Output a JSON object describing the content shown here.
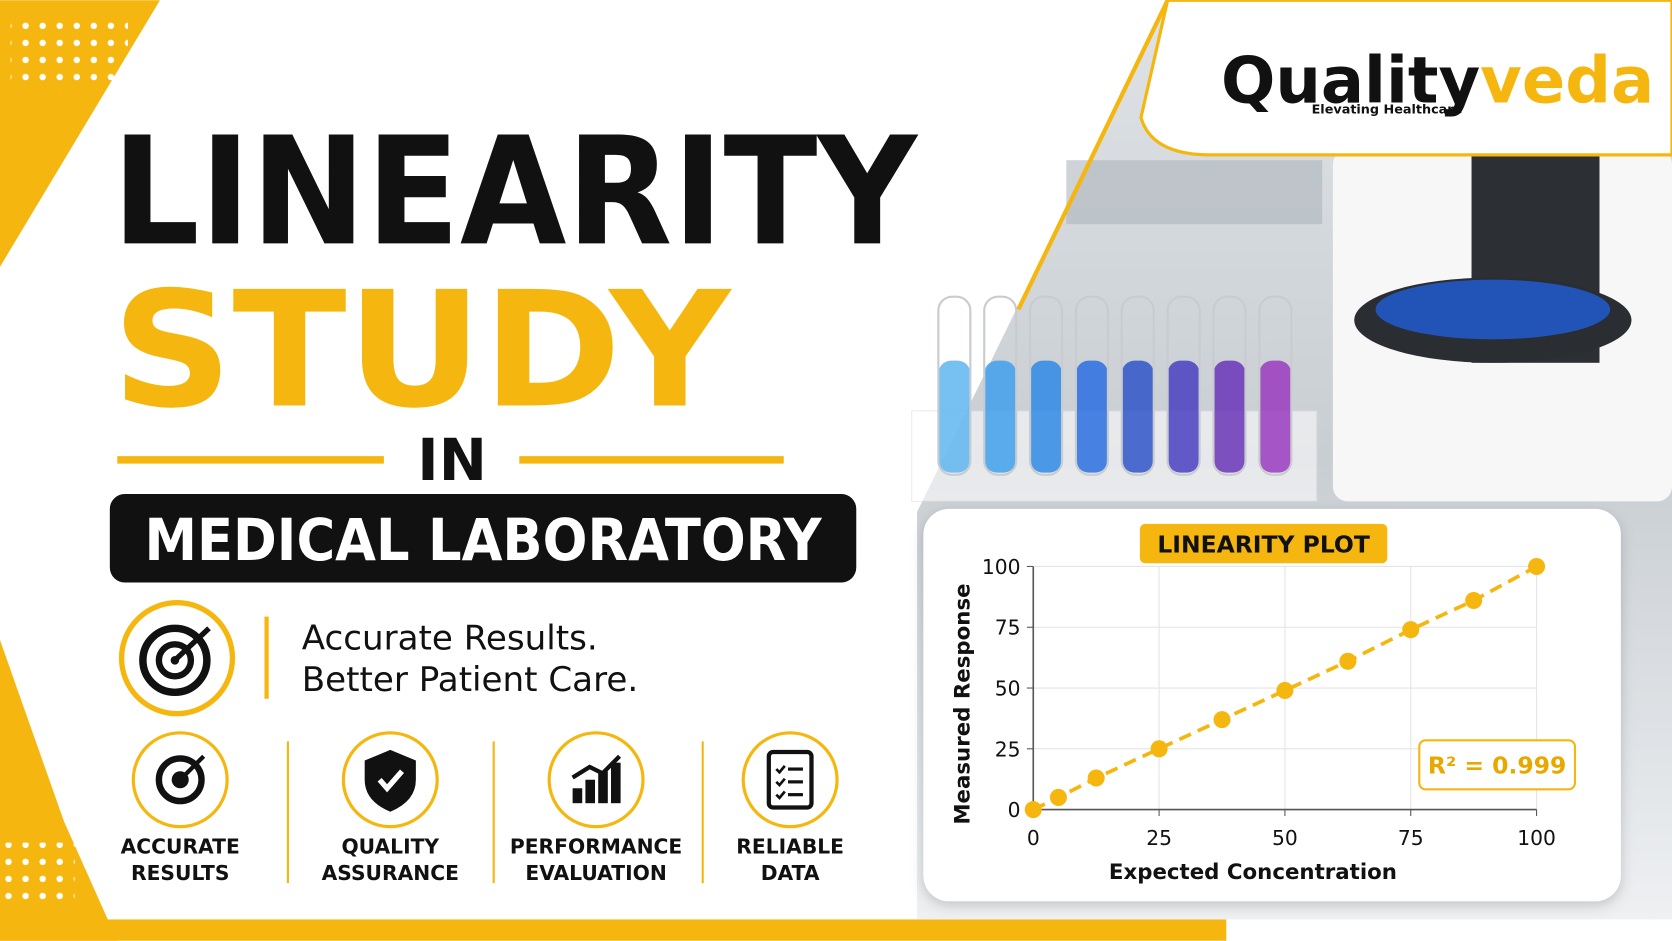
{
  "logo": {
    "brand_dark": "Quality",
    "brand_accent": "veda",
    "tagline": "Elevating Healthcare"
  },
  "headline": {
    "line1": "LINEARITY",
    "line2": "STUDY",
    "line3": "IN",
    "line4": "MEDICAL LABORATORY"
  },
  "tagline": [
    "Accurate Results.",
    "Better Patient Care."
  ],
  "features": [
    {
      "lines": [
        "ACCURATE",
        "RESULTS"
      ]
    },
    {
      "lines": [
        "QUALITY",
        "ASSURANCE"
      ]
    },
    {
      "lines": [
        "PERFORMANCE",
        "EVALUATION"
      ]
    },
    {
      "lines": [
        "RELIABLE",
        "DATA"
      ]
    }
  ],
  "chart_data": {
    "type": "line",
    "title": "LINEARITY PLOT",
    "x_label": "Expected Concentration",
    "y_label": "Measured Response",
    "x": [
      0,
      5,
      12.5,
      25,
      37.5,
      50,
      62.5,
      75,
      87.5,
      100
    ],
    "values": [
      0,
      5,
      13,
      25,
      37,
      49,
      61,
      74,
      86,
      100
    ],
    "color": "#f5b70f",
    "dashed": true,
    "markers": true,
    "xlim": [
      0,
      100
    ],
    "ylim": [
      0,
      100
    ],
    "xticks": [
      0,
      25,
      50,
      75,
      100
    ],
    "yticks": [
      0,
      25,
      50,
      75,
      100
    ],
    "grid": true,
    "annotation": "R² = 0.999"
  }
}
